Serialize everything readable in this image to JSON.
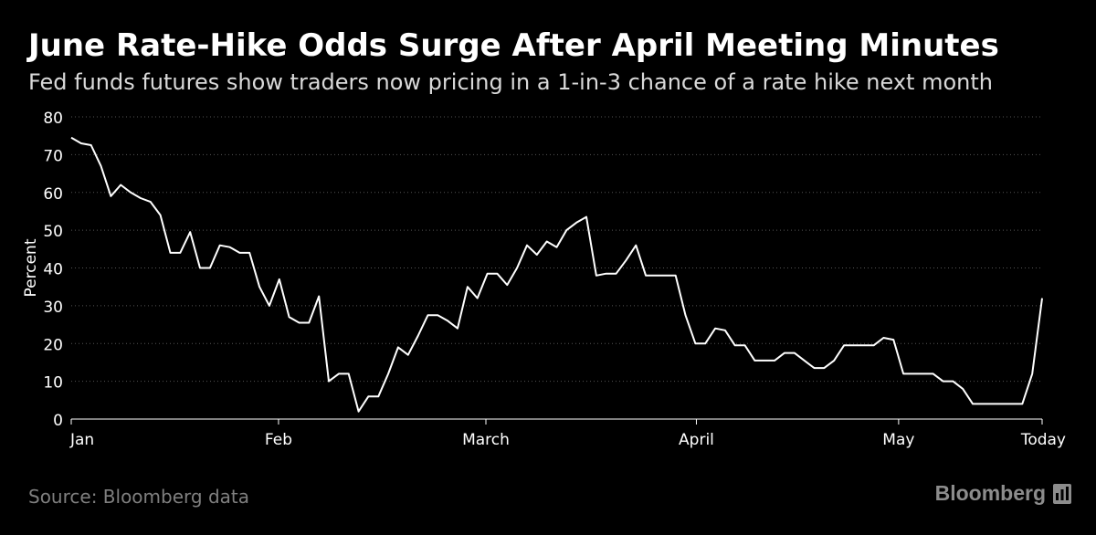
{
  "header": {
    "title": "June Rate-Hike Odds Surge After April Meeting Minutes",
    "subtitle": "Fed funds futures show traders now pricing in a 1-in-3 chance of a rate hike next month"
  },
  "footer": {
    "source": "Source: Bloomberg data",
    "brand": "Bloomberg",
    "brand_icon": "bloomberg-chart-icon"
  },
  "colors": {
    "background": "#000000",
    "line": "#ffffff",
    "grid": "#555555",
    "text_muted": "#7f7f7f"
  },
  "chart_data": {
    "type": "line",
    "title": "June Rate-Hike Odds Surge After April Meeting Minutes",
    "subtitle": "Fed funds futures show traders now pricing in a 1-in-3 chance of a rate hike next month",
    "xlabel": "",
    "ylabel": "Percent",
    "ylim": [
      0,
      80
    ],
    "yticks": [
      0,
      10,
      20,
      30,
      40,
      50,
      60,
      70,
      80
    ],
    "xtick_labels": [
      "Jan",
      "Feb",
      "March",
      "April",
      "May",
      "Today"
    ],
    "grid": "horizontal dotted",
    "legend": "none",
    "series": [
      {
        "values": [
          74.5,
          73,
          72.5,
          67,
          59,
          62,
          60,
          58.5,
          57.5,
          54,
          44,
          44,
          49.5,
          40,
          40,
          46,
          45.5,
          44,
          44,
          35,
          30,
          37,
          27,
          25.5,
          25.5,
          32.5,
          10,
          12,
          12,
          2,
          6,
          6,
          12,
          19,
          17,
          22,
          27.5,
          27.5,
          26,
          24,
          35,
          32,
          38.5,
          38.5,
          35.5,
          40,
          46,
          43.5,
          47,
          45.5,
          50,
          52,
          53.5,
          38,
          38.5,
          38.5,
          42,
          46,
          38,
          38,
          38,
          38,
          27.5,
          20,
          20,
          24,
          23.5,
          19.5,
          19.5,
          15.5,
          15.5,
          15.5,
          17.5,
          17.5,
          15.5,
          13.5,
          13.5,
          15.5,
          19.5,
          19.5,
          19.5,
          19.5,
          21.5,
          21,
          12,
          12,
          12,
          12,
          10,
          10,
          8,
          4,
          4,
          4,
          4,
          4,
          4,
          12,
          32
        ]
      }
    ]
  }
}
